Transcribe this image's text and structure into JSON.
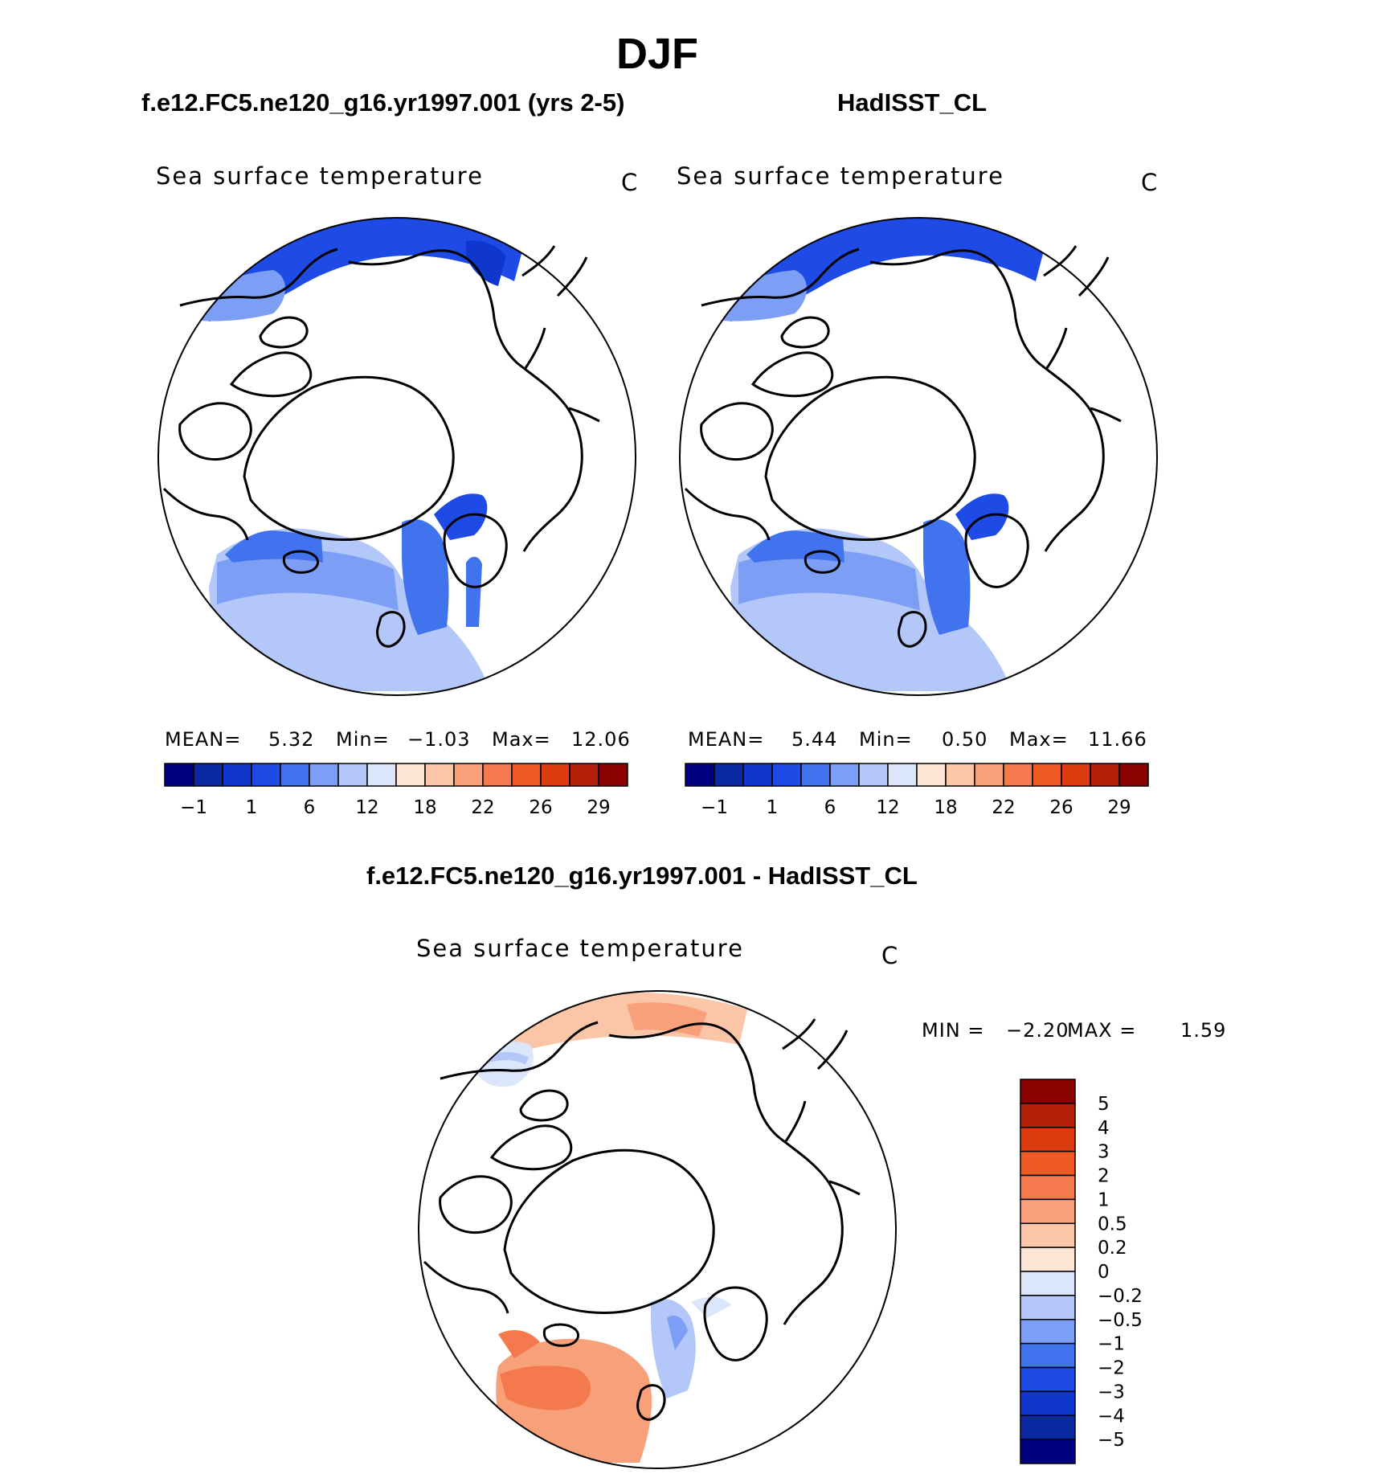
{
  "figure": {
    "season_title": "DJF"
  },
  "panels": [
    {
      "case_title": "f.e12.FC5.ne120_g16.yr1997.001 (yrs 2-5)",
      "variable": "Sea surface temperature",
      "units": "C",
      "stats": {
        "mean_label": "MEAN=",
        "mean": "5.32",
        "min_label": "Min=",
        "min": "−1.03",
        "max_label": "Max=",
        "max": "12.06"
      }
    },
    {
      "case_title": "HadISST_CL",
      "variable": "Sea surface temperature",
      "units": "C",
      "stats": {
        "mean_label": "MEAN=",
        "mean": "5.44",
        "min_label": "Min=",
        "min": "0.50",
        "max_label": "Max=",
        "max": "11.66"
      }
    },
    {
      "case_title": "f.e12.FC5.ne120_g16.yr1997.001 - HadISST_CL",
      "variable": "Sea surface temperature",
      "units": "C",
      "stats": {
        "min_label": "MIN =",
        "min": "−2.20",
        "max_label": "MAX =",
        "max": "1.59"
      }
    }
  ],
  "chart_data": {
    "type": "heatmap",
    "projection": "north polar stereographic",
    "field_colorbar": {
      "orientation": "horizontal",
      "levels": [
        -1,
        1,
        6,
        12,
        18,
        22,
        26,
        29
      ],
      "tick_labels": [
        "−1",
        "1",
        "6",
        "12",
        "18",
        "22",
        "26",
        "29"
      ],
      "colors": [
        "#000080",
        "#0a28a0",
        "#0f37cd",
        "#1e4be6",
        "#4173ee",
        "#7d9ef5",
        "#b3c8f8",
        "#dce6fb",
        "#fde6d5",
        "#fbc5a7",
        "#f8a07a",
        "#f47a4e",
        "#f05a24",
        "#dc3c10",
        "#b4200a",
        "#8b0000"
      ]
    },
    "difference_colorbar": {
      "orientation": "vertical",
      "levels": [
        -5,
        -4,
        -3,
        -2,
        -1,
        -0.5,
        -0.2,
        0,
        0.2,
        0.5,
        1,
        2,
        3,
        4,
        5
      ],
      "tick_labels": [
        "5",
        "4",
        "3",
        "2",
        "1",
        "0.5",
        "0.2",
        "0",
        "−0.2",
        "−0.5",
        "−1",
        "−2",
        "−3",
        "−4",
        "−5"
      ],
      "colors_top_to_bottom": [
        "#8b0000",
        "#b4200a",
        "#dc3c10",
        "#f05a24",
        "#f47a4e",
        "#f8a07a",
        "#fbc5a7",
        "#fde6d5",
        "#dce6fb",
        "#b3c8f8",
        "#7d9ef5",
        "#4173ee",
        "#1e4be6",
        "#0f37cd",
        "#0a28a0",
        "#000080"
      ]
    }
  }
}
